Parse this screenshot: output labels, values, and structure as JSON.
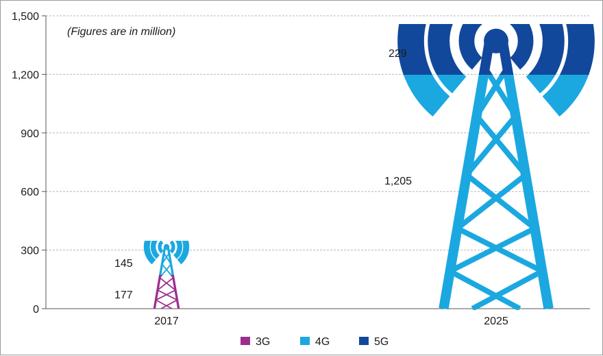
{
  "chart_data": {
    "type": "bar",
    "title": "",
    "note": "(Figures are in million)",
    "xlabel": "",
    "ylabel": "",
    "categories": [
      "2017",
      "2025"
    ],
    "ylim": [
      0,
      1500
    ],
    "yticks": [
      0,
      300,
      600,
      900,
      1200,
      1500
    ],
    "ytick_labels": [
      "0",
      "300",
      "600",
      "900",
      "1,200",
      "1,500"
    ],
    "grid": true,
    "stacked": true,
    "legend_position": "bottom",
    "series": [
      {
        "name": "3G",
        "color": "#9b2f8f",
        "values": [
          177,
          0
        ]
      },
      {
        "name": "4G",
        "color": "#1ba8e0",
        "values": [
          145,
          1205
        ]
      },
      {
        "name": "5G",
        "color": "#12489b",
        "values": [
          0,
          229
        ]
      }
    ],
    "data_labels": [
      {
        "category": "2017",
        "series": "3G",
        "text": "177"
      },
      {
        "category": "2017",
        "series": "4G",
        "text": "145"
      },
      {
        "category": "2025",
        "series": "4G",
        "text": "1,205"
      },
      {
        "category": "2025",
        "series": "5G",
        "text": "229"
      }
    ]
  }
}
